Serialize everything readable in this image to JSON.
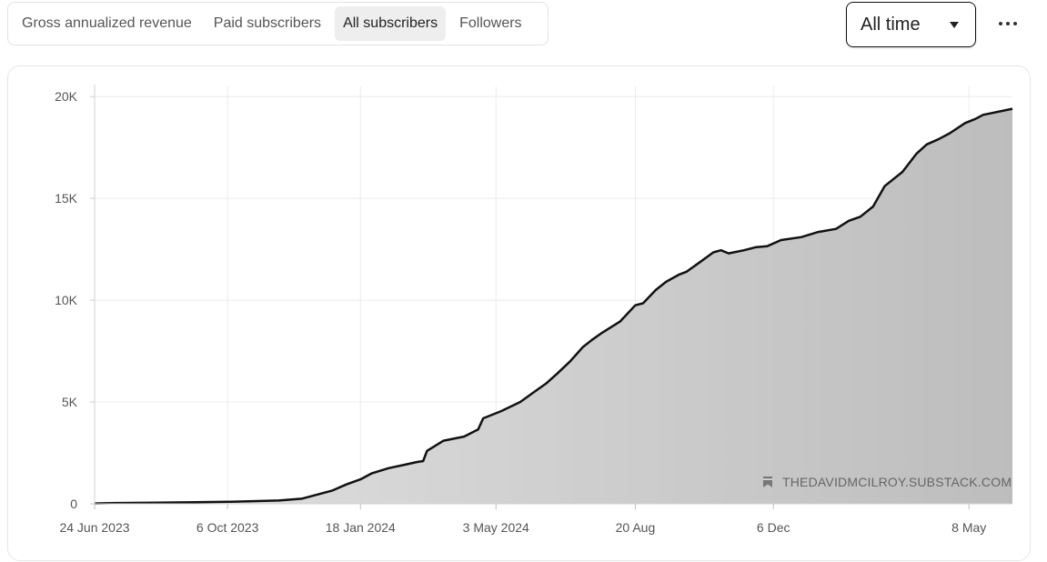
{
  "tabs": [
    {
      "label": "Gross annualized revenue",
      "active": false
    },
    {
      "label": "Paid subscribers",
      "active": false
    },
    {
      "label": "All subscribers",
      "active": true
    },
    {
      "label": "Followers",
      "active": false
    }
  ],
  "range": {
    "selected": "All time"
  },
  "icons": {
    "more": "more-horizontal-icon",
    "caret": "caret-down-icon",
    "watermark": "bookmark-icon"
  },
  "chart_data": {
    "type": "area",
    "x_axis": {
      "type": "date",
      "range": [
        "2023-06-24",
        "2025-06-11"
      ],
      "ticks": [
        {
          "date": "2023-06-24",
          "label": "24 Jun 2023"
        },
        {
          "date": "2023-10-06",
          "label": "6 Oct 2023"
        },
        {
          "date": "2024-01-18",
          "label": "18 Jan 2024"
        },
        {
          "date": "2024-05-03",
          "label": "3 May 2024"
        },
        {
          "date": "2024-08-20",
          "label": "20 Aug"
        },
        {
          "date": "2024-12-06",
          "label": "6 Dec"
        },
        {
          "date": "2025-05-08",
          "label": "8 May"
        }
      ]
    },
    "y_axis": {
      "range": [
        0,
        20500
      ],
      "ticks": [
        {
          "value": 0,
          "label": "0"
        },
        {
          "value": 5000,
          "label": "5K"
        },
        {
          "value": 10000,
          "label": "10K"
        },
        {
          "value": 15000,
          "label": "15K"
        },
        {
          "value": 20000,
          "label": "20K"
        }
      ]
    },
    "grid": true,
    "line_color": "#111111",
    "fill_color": "#bdbdbd",
    "series": [
      {
        "points": [
          [
            "2023-06-17",
            20
          ],
          [
            "2023-07-13",
            40
          ],
          [
            "2023-08-12",
            60
          ],
          [
            "2023-09-11",
            80
          ],
          [
            "2023-10-08",
            100
          ],
          [
            "2023-10-26",
            130
          ],
          [
            "2023-11-15",
            160
          ],
          [
            "2023-12-03",
            250
          ],
          [
            "2023-12-15",
            450
          ],
          [
            "2023-12-27",
            650
          ],
          [
            "2024-01-07",
            950
          ],
          [
            "2024-01-18",
            1200
          ],
          [
            "2024-01-27",
            1500
          ],
          [
            "2024-02-09",
            1750
          ],
          [
            "2024-02-20",
            1900
          ],
          [
            "2024-03-02",
            2050
          ],
          [
            "2024-03-07",
            2100
          ],
          [
            "2024-03-10",
            2600
          ],
          [
            "2024-03-23",
            3100
          ],
          [
            "2024-04-08",
            3300
          ],
          [
            "2024-04-19",
            3650
          ],
          [
            "2024-04-23",
            4200
          ],
          [
            "2024-05-07",
            4550
          ],
          [
            "2024-05-22",
            5000
          ],
          [
            "2024-06-02",
            5500
          ],
          [
            "2024-06-11",
            5900
          ],
          [
            "2024-06-20",
            6400
          ],
          [
            "2024-06-30",
            7000
          ],
          [
            "2024-07-10",
            7700
          ],
          [
            "2024-07-17",
            8050
          ],
          [
            "2024-07-25",
            8400
          ],
          [
            "2024-08-08",
            8950
          ],
          [
            "2024-08-20",
            9750
          ],
          [
            "2024-08-26",
            9850
          ],
          [
            "2024-09-05",
            10500
          ],
          [
            "2024-09-13",
            10900
          ],
          [
            "2024-09-23",
            11250
          ],
          [
            "2024-09-29",
            11400
          ],
          [
            "2024-10-08",
            11800
          ],
          [
            "2024-10-20",
            12350
          ],
          [
            "2024-10-26",
            12450
          ],
          [
            "2024-11-01",
            12300
          ],
          [
            "2024-11-13",
            12450
          ],
          [
            "2024-11-22",
            12600
          ],
          [
            "2024-12-01",
            12650
          ],
          [
            "2024-12-12",
            12950
          ],
          [
            "2024-12-28",
            13100
          ],
          [
            "2025-01-10",
            13350
          ],
          [
            "2025-01-24",
            13500
          ],
          [
            "2025-02-03",
            13900
          ],
          [
            "2025-02-12",
            14100
          ],
          [
            "2025-02-22",
            14600
          ],
          [
            "2025-03-03",
            15600
          ],
          [
            "2025-03-17",
            16300
          ],
          [
            "2025-03-28",
            17200
          ],
          [
            "2025-04-05",
            17650
          ],
          [
            "2025-04-14",
            17900
          ],
          [
            "2025-04-23",
            18200
          ],
          [
            "2025-05-05",
            18700
          ],
          [
            "2025-05-13",
            18900
          ],
          [
            "2025-05-19",
            19100
          ],
          [
            "2025-06-11",
            19400
          ]
        ]
      }
    ],
    "watermark": "THEDAVIDMCILROY.SUBSTACK.COM"
  }
}
